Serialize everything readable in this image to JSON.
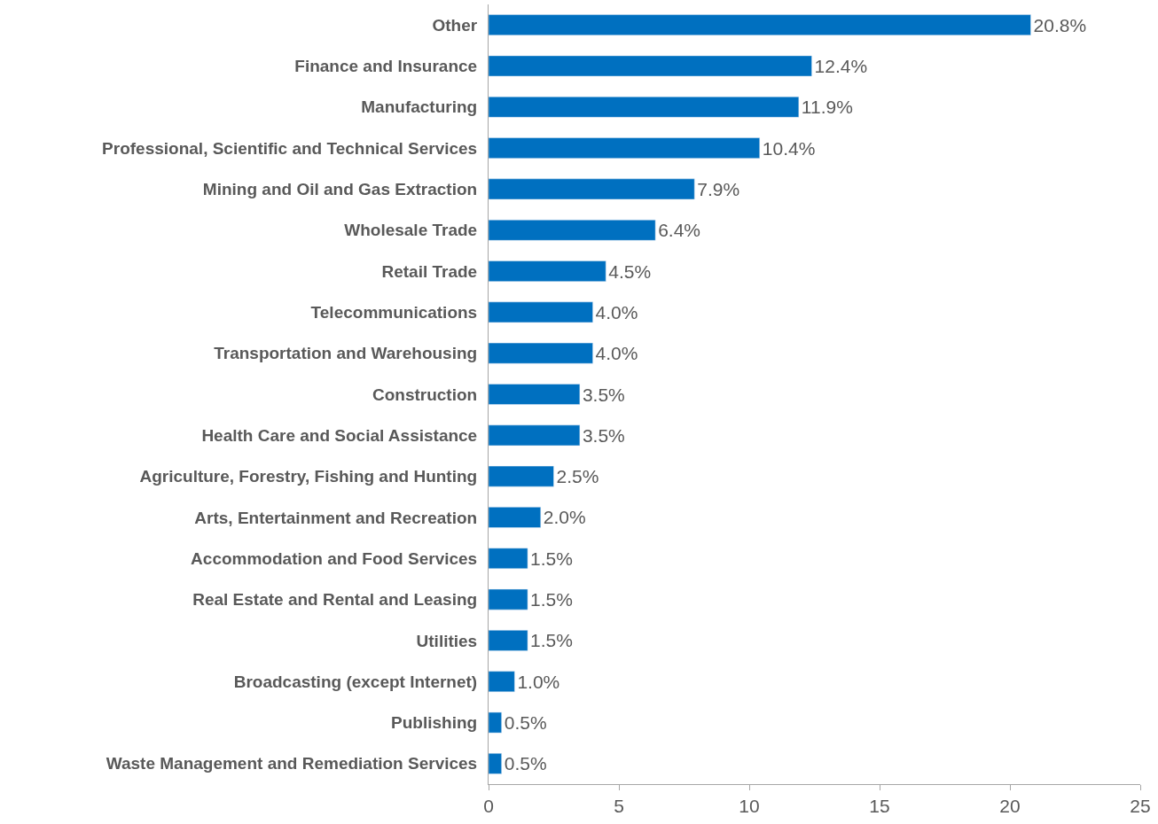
{
  "chart_data": {
    "type": "bar",
    "orientation": "horizontal",
    "categories": [
      "Other",
      "Finance and Insurance",
      "Manufacturing",
      "Professional, Scientific and Technical Services",
      "Mining and Oil and Gas Extraction",
      "Wholesale Trade",
      "Retail Trade",
      "Telecommunications",
      "Transportation and Warehousing",
      "Construction",
      "Health Care and Social Assistance",
      "Agriculture, Forestry, Fishing and Hunting",
      "Arts, Entertainment and Recreation",
      "Accommodation and Food Services",
      "Real Estate and Rental and Leasing",
      "Utilities",
      "Broadcasting (except Internet)",
      "Publishing",
      "Waste Management and Remediation Services"
    ],
    "values": [
      20.8,
      12.4,
      11.9,
      10.4,
      7.9,
      6.4,
      4.5,
      4.0,
      4.0,
      3.5,
      3.5,
      2.5,
      2.0,
      1.5,
      1.5,
      1.5,
      1.0,
      0.5,
      0.5
    ],
    "value_labels": [
      "20.8%",
      "12.4%",
      "11.9%",
      "10.4%",
      "7.9%",
      "6.4%",
      "4.5%",
      "4.0%",
      "4.0%",
      "3.5%",
      "3.5%",
      "2.5%",
      "2.0%",
      "1.5%",
      "1.5%",
      "1.5%",
      "1.0%",
      "0.5%",
      "0.5%"
    ],
    "color": "#0070c0",
    "xlim": [
      0,
      25
    ],
    "xticks": [
      0,
      5,
      10,
      15,
      20,
      25
    ]
  }
}
